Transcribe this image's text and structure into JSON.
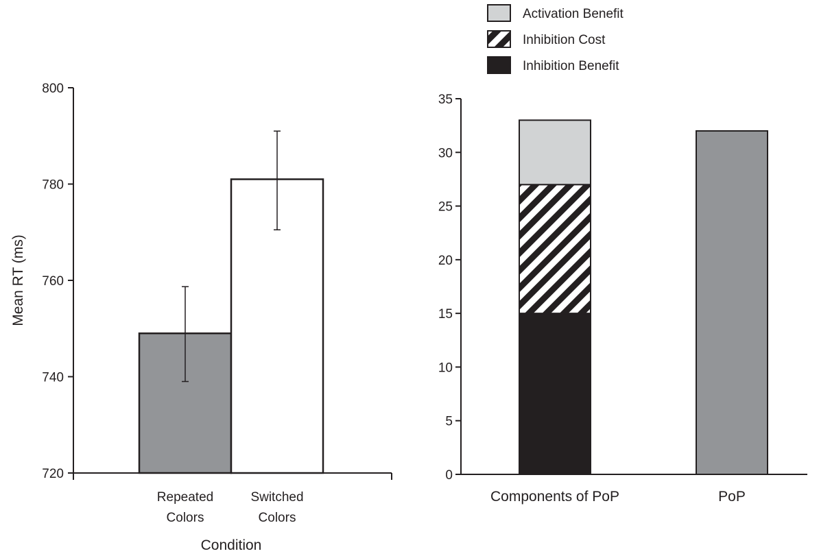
{
  "colors": {
    "ink": "#231f20",
    "gray_bar": "#939598",
    "light_bar": "#d1d3d4",
    "white_bar": "#ffffff",
    "dark_bar": "#231f20"
  },
  "chart_data": [
    {
      "type": "bar",
      "title": "",
      "xlabel": "Condition",
      "ylabel": "Mean RT (ms)",
      "ylim": [
        720,
        800
      ],
      "yticks": [
        720,
        740,
        760,
        780,
        800
      ],
      "categories": [
        "Repeated Colors",
        "Switched Colors"
      ],
      "category_lines": [
        [
          "Repeated",
          "Colors"
        ],
        [
          "Switched",
          "Colors"
        ]
      ],
      "values": [
        749,
        781
      ],
      "error": [
        [
          739,
          758.7
        ],
        [
          770.5,
          791
        ]
      ],
      "bar_colors": [
        "#939598",
        "#ffffff"
      ],
      "grid": false,
      "legend": false
    },
    {
      "type": "bar",
      "title": "",
      "xlabel": "",
      "ylabel": "",
      "ylim": [
        0,
        35
      ],
      "yticks": [
        0,
        5,
        10,
        15,
        20,
        25,
        30,
        35
      ],
      "categories": [
        "Components of PoP",
        "PoP"
      ],
      "stacked": true,
      "series": [
        {
          "name": "Inhibition Benefit",
          "pattern": "solid-dark",
          "values": [
            15,
            null
          ]
        },
        {
          "name": "Inhibition Cost",
          "pattern": "diagonal-stripes",
          "values": [
            12,
            null
          ]
        },
        {
          "name": "Activation Benefit",
          "pattern": "light-gray",
          "values": [
            6,
            null
          ]
        }
      ],
      "single_bar": {
        "category": "PoP",
        "value": 32,
        "color": "#939598"
      },
      "legend_order": [
        "Activation Benefit",
        "Inhibition Cost",
        "Inhibition Benefit"
      ],
      "legend_position": "top",
      "grid": false
    }
  ]
}
